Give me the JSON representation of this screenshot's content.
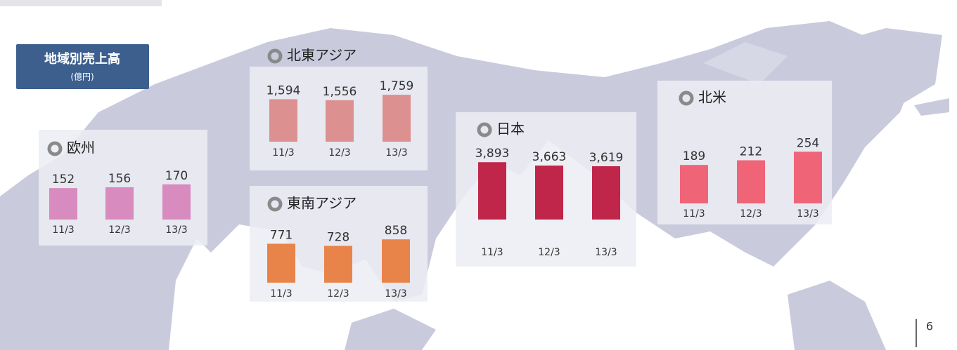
{
  "title": "地域別売上高",
  "unit": "(億円)",
  "page_number": "6",
  "chart_data": [
    {
      "type": "bar",
      "title": "欧州",
      "categories": [
        "11/3",
        "12/3",
        "13/3"
      ],
      "values": [
        152,
        156,
        170
      ],
      "value_labels": [
        "152",
        "156",
        "170"
      ],
      "color": "#d78bbf",
      "ylim": [
        0,
        200
      ]
    },
    {
      "type": "bar",
      "title": "北東アジア",
      "categories": [
        "11/3",
        "12/3",
        "13/3"
      ],
      "values": [
        1594,
        1556,
        1759
      ],
      "value_labels": [
        "1,594",
        "1,556",
        "1,759"
      ],
      "color": "#dc9090",
      "ylim": [
        0,
        2000
      ]
    },
    {
      "type": "bar",
      "title": "東南アジア",
      "categories": [
        "11/3",
        "12/3",
        "13/3"
      ],
      "values": [
        771,
        728,
        858
      ],
      "value_labels": [
        "771",
        "728",
        "858"
      ],
      "color": "#e8844a",
      "ylim": [
        0,
        1000
      ]
    },
    {
      "type": "bar",
      "title": "日本",
      "categories": [
        "11/3",
        "12/3",
        "13/3"
      ],
      "values": [
        3893,
        3663,
        3619
      ],
      "value_labels": [
        "3,893",
        "3,663",
        "3,619"
      ],
      "color": "#c0254a",
      "ylim": [
        0,
        4000
      ]
    },
    {
      "type": "bar",
      "title": "北米",
      "categories": [
        "11/3",
        "12/3",
        "13/3"
      ],
      "values": [
        189,
        212,
        254
      ],
      "value_labels": [
        "189",
        "212",
        "254"
      ],
      "color": "#f06478",
      "ylim": [
        0,
        300
      ]
    }
  ]
}
